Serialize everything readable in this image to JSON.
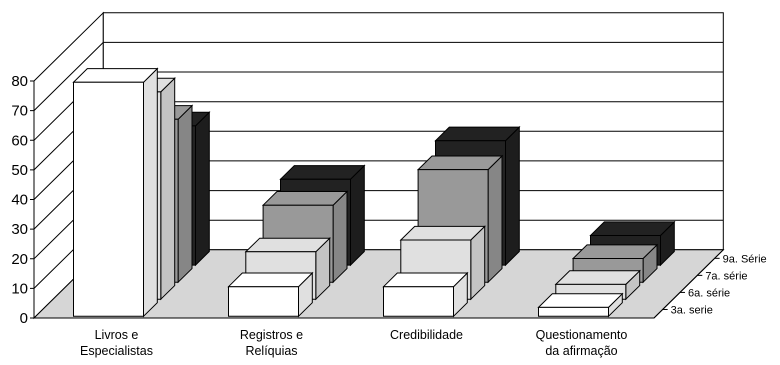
{
  "chart_data": {
    "type": "bar",
    "subtype": "3d-column-series-depth",
    "title": "",
    "xlabel": "",
    "ylabel": "",
    "ylim": [
      0,
      80
    ],
    "yticks": [
      0,
      10,
      20,
      30,
      40,
      50,
      60,
      70,
      80
    ],
    "categories": [
      [
        "Livros e",
        "Especialistas"
      ],
      [
        "Registros e",
        "Relíquias"
      ],
      [
        "Credibilidade"
      ],
      [
        "Questionamento",
        "da afirmação"
      ]
    ],
    "series": [
      {
        "name": "3a. serie",
        "values": [
          79,
          10,
          10,
          3
        ]
      },
      {
        "name": "6a. série",
        "values": [
          70,
          16,
          20,
          5
        ]
      },
      {
        "name": "7a. série",
        "values": [
          55,
          26,
          38,
          8
        ]
      },
      {
        "name": "9a. Série",
        "values": [
          47,
          29,
          42,
          10
        ]
      }
    ],
    "colors": {
      "series": [
        "#ffffff",
        "#e0e0e0",
        "#999999",
        "#222222"
      ],
      "floor": "#d6d6d6",
      "walls": "#ffffff",
      "grid": "#000000"
    },
    "grid": true,
    "legend": "depth-axis-right"
  }
}
